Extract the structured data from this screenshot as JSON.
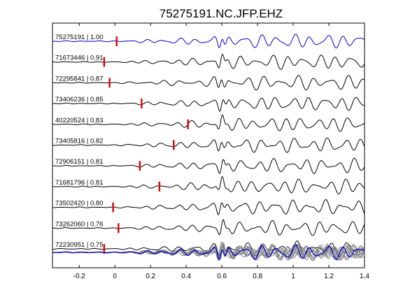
{
  "chart_data": {
    "type": "line",
    "title": "75275191.NC.JFP.EHZ",
    "xlim": [
      -0.35,
      1.4
    ],
    "xticks": [
      -0.2,
      0,
      0.2,
      0.4,
      0.6,
      0.8,
      1,
      1.2,
      1.4
    ],
    "xtick_labels": [
      "-0.2",
      "0",
      "0.2",
      "0.4",
      "0.6",
      "0.8",
      "1",
      "1.2",
      "1.4"
    ],
    "grid": false,
    "colors": {
      "reference": "#0000cc",
      "trace": "#000000",
      "pick": "#dd0000",
      "stack_gray": "#888888"
    },
    "traces": [
      {
        "label": "75275191 | 1.00",
        "pick": 0.01,
        "color": "#0000cc"
      },
      {
        "label": "71673446 | 0.91",
        "pick": -0.06,
        "color": "#000000"
      },
      {
        "label": "72295841 | 0.87",
        "pick": -0.03,
        "color": "#000000"
      },
      {
        "label": "73406236 | 0.85",
        "pick": 0.15,
        "color": "#000000"
      },
      {
        "label": "40220524 | 0.83",
        "pick": 0.41,
        "color": "#000000"
      },
      {
        "label": "73405816 | 0.82",
        "pick": 0.33,
        "color": "#000000"
      },
      {
        "label": "72906151 | 0.81",
        "pick": 0.14,
        "color": "#000000"
      },
      {
        "label": "71681796 | 0.81",
        "pick": 0.25,
        "color": "#000000"
      },
      {
        "label": "73502420 | 0.80",
        "pick": -0.01,
        "color": "#000000"
      },
      {
        "label": "73262060 | 0.76",
        "pick": 0.02,
        "color": "#000000"
      },
      {
        "label": "72230951 | 0.75",
        "pick": -0.06,
        "color": "#000000"
      }
    ],
    "stack": {
      "description": "overlay of all traces (gray) with reference (blue)"
    }
  }
}
